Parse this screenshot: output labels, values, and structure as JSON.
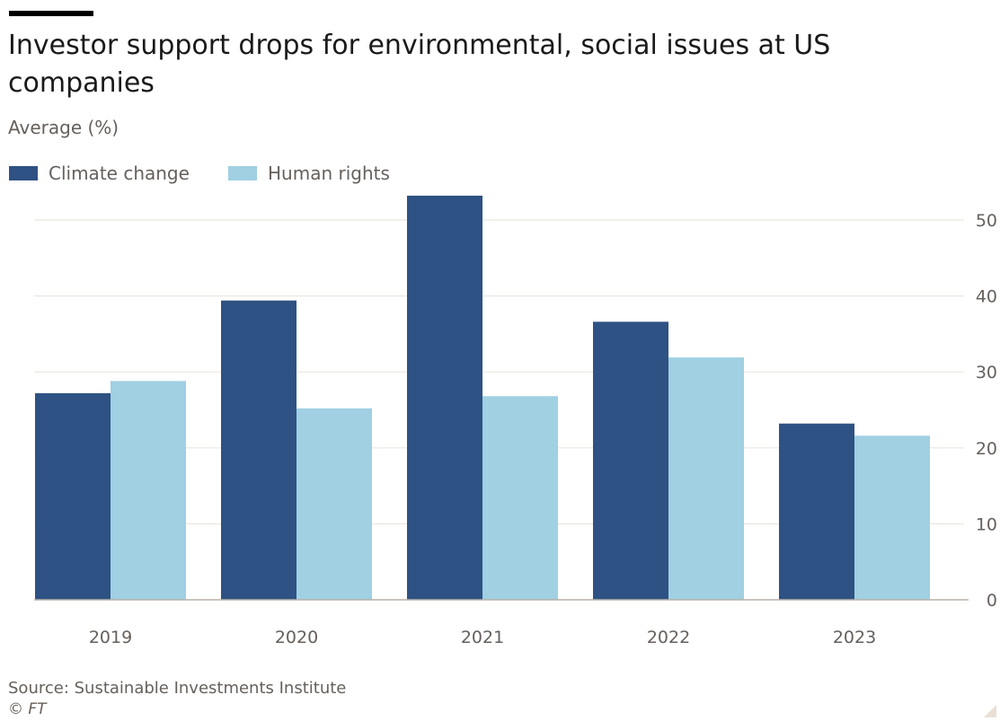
{
  "chart_data": {
    "type": "bar",
    "title": "Investor support drops for environmental, social issues at US companies",
    "subtitle": "Average (%)",
    "categories": [
      "2019",
      "2020",
      "2021",
      "2022",
      "2023"
    ],
    "series": [
      {
        "name": "Climate change",
        "color": "#2e5283",
        "values": [
          27.2,
          39.4,
          53.2,
          36.6,
          23.2
        ]
      },
      {
        "name": "Human rights",
        "color": "#a0d0e2",
        "values": [
          28.8,
          25.2,
          26.8,
          31.9,
          21.6
        ]
      }
    ],
    "ylim": [
      0,
      50
    ],
    "yticks": [
      0,
      10,
      20,
      30,
      40,
      50
    ],
    "ytick_labels": [
      "0",
      "10",
      "20",
      "30",
      "40",
      "50"
    ],
    "y_axis_position": "right",
    "legend_position": "top-left",
    "grid": true,
    "source": "Source: Sustainable Investments Institute",
    "credit": "© FT"
  }
}
